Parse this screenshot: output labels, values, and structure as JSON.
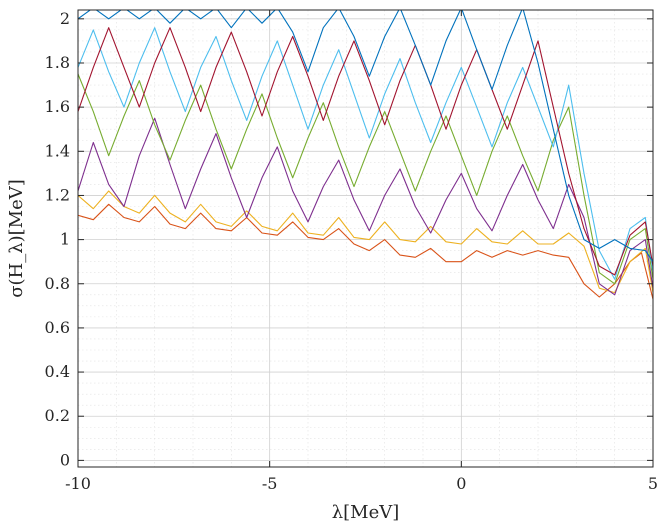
{
  "chart_data": {
    "type": "line",
    "title": "",
    "xlabel": "λ[MeV]",
    "ylabel": "σ(H_λ)[MeV]",
    "xlim": [
      -10,
      5
    ],
    "ylim": [
      -0.03,
      2.04
    ],
    "xticks": [
      -10,
      -5,
      0,
      5
    ],
    "xtick_labels": [
      "-10",
      "-5",
      "0",
      "5"
    ],
    "yticks": [
      0,
      0.2,
      0.4,
      0.6,
      0.8,
      1,
      1.2,
      1.4,
      1.6,
      1.8,
      2
    ],
    "ytick_labels": [
      "0",
      "0.2",
      "0.4",
      "0.6",
      "0.8",
      "1",
      "1.2",
      "1.4",
      "1.6",
      "1.8",
      "2"
    ],
    "grid": "major and minor, dotted",
    "colors": [
      "#0072BD",
      "#D95319",
      "#EDB120",
      "#7E2F8E",
      "#77AC30",
      "#4DBEEE",
      "#A2142F"
    ],
    "series": [
      {
        "color": "#D95319",
        "points": [
          [
            -10,
            1.11
          ],
          [
            -9.6,
            1.09
          ],
          [
            -9.2,
            1.16
          ],
          [
            -8.8,
            1.1
          ],
          [
            -8.4,
            1.08
          ],
          [
            -8.0,
            1.15
          ],
          [
            -7.6,
            1.07
          ],
          [
            -7.2,
            1.05
          ],
          [
            -6.8,
            1.12
          ],
          [
            -6.4,
            1.05
          ],
          [
            -6.0,
            1.04
          ],
          [
            -5.6,
            1.1
          ],
          [
            -5.2,
            1.03
          ],
          [
            -4.8,
            1.02
          ],
          [
            -4.4,
            1.08
          ],
          [
            -4.0,
            1.01
          ],
          [
            -3.6,
            1.0
          ],
          [
            -3.2,
            1.05
          ],
          [
            -2.8,
            0.98
          ],
          [
            -2.4,
            0.95
          ],
          [
            -2.0,
            1.0
          ],
          [
            -1.6,
            0.93
          ],
          [
            -1.2,
            0.92
          ],
          [
            -0.8,
            0.96
          ],
          [
            -0.4,
            0.9
          ],
          [
            0.0,
            0.9
          ],
          [
            0.4,
            0.95
          ],
          [
            0.8,
            0.92
          ],
          [
            1.2,
            0.95
          ],
          [
            1.6,
            0.93
          ],
          [
            2.0,
            0.95
          ],
          [
            2.4,
            0.93
          ],
          [
            2.8,
            0.92
          ],
          [
            3.2,
            0.8
          ],
          [
            3.6,
            0.74
          ],
          [
            4.0,
            0.8
          ],
          [
            4.4,
            0.9
          ],
          [
            4.7,
            0.94
          ],
          [
            5.0,
            0.73
          ]
        ]
      },
      {
        "color": "#EDB120",
        "points": [
          [
            -10,
            1.2
          ],
          [
            -9.6,
            1.14
          ],
          [
            -9.2,
            1.22
          ],
          [
            -8.8,
            1.15
          ],
          [
            -8.4,
            1.12
          ],
          [
            -8.0,
            1.2
          ],
          [
            -7.6,
            1.12
          ],
          [
            -7.2,
            1.08
          ],
          [
            -6.8,
            1.16
          ],
          [
            -6.4,
            1.08
          ],
          [
            -6.0,
            1.06
          ],
          [
            -5.6,
            1.13
          ],
          [
            -5.2,
            1.06
          ],
          [
            -4.8,
            1.04
          ],
          [
            -4.4,
            1.12
          ],
          [
            -4.0,
            1.03
          ],
          [
            -3.6,
            1.02
          ],
          [
            -3.2,
            1.1
          ],
          [
            -2.8,
            1.01
          ],
          [
            -2.4,
            1.0
          ],
          [
            -2.0,
            1.08
          ],
          [
            -1.6,
            1.0
          ],
          [
            -1.2,
            0.99
          ],
          [
            -0.8,
            1.06
          ],
          [
            -0.4,
            0.99
          ],
          [
            0.0,
            0.98
          ],
          [
            0.4,
            1.05
          ],
          [
            0.8,
            0.99
          ],
          [
            1.2,
            0.98
          ],
          [
            1.6,
            1.04
          ],
          [
            2.0,
            0.98
          ],
          [
            2.4,
            0.98
          ],
          [
            2.8,
            1.03
          ],
          [
            3.2,
            0.97
          ],
          [
            3.6,
            0.78
          ],
          [
            4.0,
            0.76
          ],
          [
            4.4,
            0.9
          ],
          [
            4.8,
            0.96
          ],
          [
            5.0,
            0.76
          ]
        ]
      },
      {
        "color": "#7E2F8E",
        "points": [
          [
            -10,
            1.22
          ],
          [
            -9.6,
            1.44
          ],
          [
            -9.2,
            1.25
          ],
          [
            -8.8,
            1.15
          ],
          [
            -8.4,
            1.38
          ],
          [
            -8.0,
            1.55
          ],
          [
            -7.6,
            1.34
          ],
          [
            -7.2,
            1.14
          ],
          [
            -6.8,
            1.32
          ],
          [
            -6.4,
            1.48
          ],
          [
            -6.0,
            1.28
          ],
          [
            -5.6,
            1.1
          ],
          [
            -5.2,
            1.28
          ],
          [
            -4.8,
            1.42
          ],
          [
            -4.4,
            1.22
          ],
          [
            -4.0,
            1.08
          ],
          [
            -3.6,
            1.24
          ],
          [
            -3.2,
            1.36
          ],
          [
            -2.8,
            1.18
          ],
          [
            -2.4,
            1.04
          ],
          [
            -2.0,
            1.2
          ],
          [
            -1.6,
            1.32
          ],
          [
            -1.2,
            1.15
          ],
          [
            -0.8,
            1.03
          ],
          [
            -0.4,
            1.18
          ],
          [
            0.0,
            1.3
          ],
          [
            0.4,
            1.14
          ],
          [
            0.8,
            1.04
          ],
          [
            1.2,
            1.2
          ],
          [
            1.6,
            1.34
          ],
          [
            2.0,
            1.18
          ],
          [
            2.4,
            1.05
          ],
          [
            2.8,
            1.25
          ],
          [
            3.2,
            1.1
          ],
          [
            3.6,
            0.8
          ],
          [
            4.0,
            0.75
          ],
          [
            4.4,
            0.95
          ],
          [
            4.8,
            1.0
          ],
          [
            5.0,
            0.78
          ]
        ]
      },
      {
        "color": "#77AC30",
        "points": [
          [
            -10,
            1.75
          ],
          [
            -9.6,
            1.58
          ],
          [
            -9.2,
            1.38
          ],
          [
            -8.8,
            1.56
          ],
          [
            -8.4,
            1.72
          ],
          [
            -8.0,
            1.52
          ],
          [
            -7.6,
            1.36
          ],
          [
            -7.2,
            1.54
          ],
          [
            -6.8,
            1.7
          ],
          [
            -6.4,
            1.5
          ],
          [
            -6.0,
            1.32
          ],
          [
            -5.6,
            1.5
          ],
          [
            -5.2,
            1.66
          ],
          [
            -4.8,
            1.46
          ],
          [
            -4.4,
            1.28
          ],
          [
            -4.0,
            1.46
          ],
          [
            -3.6,
            1.62
          ],
          [
            -3.2,
            1.42
          ],
          [
            -2.8,
            1.24
          ],
          [
            -2.4,
            1.42
          ],
          [
            -2.0,
            1.58
          ],
          [
            -1.6,
            1.4
          ],
          [
            -1.2,
            1.22
          ],
          [
            -0.8,
            1.4
          ],
          [
            -0.4,
            1.56
          ],
          [
            0.0,
            1.38
          ],
          [
            0.4,
            1.2
          ],
          [
            0.8,
            1.4
          ],
          [
            1.2,
            1.56
          ],
          [
            1.6,
            1.38
          ],
          [
            2.0,
            1.22
          ],
          [
            2.4,
            1.45
          ],
          [
            2.8,
            1.6
          ],
          [
            3.2,
            1.2
          ],
          [
            3.6,
            0.85
          ],
          [
            4.0,
            0.8
          ],
          [
            4.4,
            1.0
          ],
          [
            4.8,
            1.05
          ],
          [
            5.0,
            0.82
          ]
        ]
      },
      {
        "color": "#4DBEEE",
        "points": [
          [
            -10,
            1.78
          ],
          [
            -9.6,
            1.95
          ],
          [
            -9.2,
            1.76
          ],
          [
            -8.8,
            1.6
          ],
          [
            -8.4,
            1.8
          ],
          [
            -8.0,
            1.96
          ],
          [
            -7.6,
            1.76
          ],
          [
            -7.2,
            1.58
          ],
          [
            -6.8,
            1.78
          ],
          [
            -6.4,
            1.92
          ],
          [
            -6.0,
            1.72
          ],
          [
            -5.6,
            1.54
          ],
          [
            -5.2,
            1.74
          ],
          [
            -4.8,
            1.9
          ],
          [
            -4.4,
            1.7
          ],
          [
            -4.0,
            1.5
          ],
          [
            -3.6,
            1.7
          ],
          [
            -3.2,
            1.86
          ],
          [
            -2.8,
            1.66
          ],
          [
            -2.4,
            1.46
          ],
          [
            -2.0,
            1.66
          ],
          [
            -1.6,
            1.82
          ],
          [
            -1.2,
            1.62
          ],
          [
            -0.8,
            1.44
          ],
          [
            -0.4,
            1.62
          ],
          [
            0.0,
            1.78
          ],
          [
            0.4,
            1.6
          ],
          [
            0.8,
            1.42
          ],
          [
            1.2,
            1.62
          ],
          [
            1.6,
            1.78
          ],
          [
            2.0,
            1.6
          ],
          [
            2.4,
            1.42
          ],
          [
            2.8,
            1.7
          ],
          [
            3.2,
            1.3
          ],
          [
            3.6,
            0.95
          ],
          [
            4.0,
            0.82
          ],
          [
            4.4,
            1.05
          ],
          [
            4.8,
            1.1
          ],
          [
            5.0,
            0.85
          ]
        ]
      },
      {
        "color": "#A2142F",
        "points": [
          [
            -10,
            1.58
          ],
          [
            -9.6,
            1.78
          ],
          [
            -9.2,
            1.96
          ],
          [
            -8.8,
            1.78
          ],
          [
            -8.4,
            1.6
          ],
          [
            -8.0,
            1.8
          ],
          [
            -7.6,
            1.96
          ],
          [
            -7.2,
            1.78
          ],
          [
            -6.8,
            1.58
          ],
          [
            -6.4,
            1.78
          ],
          [
            -6.0,
            1.94
          ],
          [
            -5.6,
            1.76
          ],
          [
            -5.2,
            1.56
          ],
          [
            -4.8,
            1.76
          ],
          [
            -4.4,
            1.92
          ],
          [
            -4.0,
            1.74
          ],
          [
            -3.6,
            1.54
          ],
          [
            -3.2,
            1.74
          ],
          [
            -2.8,
            1.9
          ],
          [
            -2.4,
            1.72
          ],
          [
            -2.0,
            1.52
          ],
          [
            -1.6,
            1.72
          ],
          [
            -1.2,
            1.88
          ],
          [
            -0.8,
            1.7
          ],
          [
            -0.4,
            1.5
          ],
          [
            0.0,
            1.7
          ],
          [
            0.4,
            1.86
          ],
          [
            0.8,
            1.68
          ],
          [
            1.2,
            1.5
          ],
          [
            1.6,
            1.7
          ],
          [
            2.0,
            1.9
          ],
          [
            2.4,
            1.6
          ],
          [
            2.8,
            1.3
          ],
          [
            3.2,
            1.05
          ],
          [
            3.6,
            0.88
          ],
          [
            4.0,
            0.84
          ],
          [
            4.4,
            1.02
          ],
          [
            4.8,
            1.08
          ],
          [
            5.0,
            0.88
          ]
        ]
      },
      {
        "color": "#0072BD",
        "points": [
          [
            -10,
            2.0
          ],
          [
            -9.6,
            2.05
          ],
          [
            -9.2,
            2.0
          ],
          [
            -8.8,
            2.05
          ],
          [
            -8.4,
            2.0
          ],
          [
            -8.0,
            2.05
          ],
          [
            -7.6,
            1.98
          ],
          [
            -7.2,
            2.05
          ],
          [
            -6.8,
            2.0
          ],
          [
            -6.4,
            2.05
          ],
          [
            -6.0,
            1.96
          ],
          [
            -5.6,
            2.05
          ],
          [
            -5.2,
            1.98
          ],
          [
            -4.8,
            2.05
          ],
          [
            -4.4,
            1.94
          ],
          [
            -4.0,
            1.76
          ],
          [
            -3.6,
            1.96
          ],
          [
            -3.2,
            2.05
          ],
          [
            -2.8,
            1.92
          ],
          [
            -2.4,
            1.74
          ],
          [
            -2.0,
            1.92
          ],
          [
            -1.6,
            2.05
          ],
          [
            -1.2,
            1.88
          ],
          [
            -0.8,
            1.7
          ],
          [
            -0.4,
            1.9
          ],
          [
            0.0,
            2.05
          ],
          [
            0.4,
            1.86
          ],
          [
            0.8,
            1.68
          ],
          [
            1.2,
            1.88
          ],
          [
            1.6,
            2.05
          ],
          [
            2.0,
            1.8
          ],
          [
            2.4,
            1.5
          ],
          [
            2.8,
            1.2
          ],
          [
            3.2,
            1.0
          ],
          [
            3.6,
            0.96
          ],
          [
            4.0,
            1.0
          ],
          [
            4.4,
            0.96
          ],
          [
            4.8,
            0.95
          ],
          [
            5.0,
            0.9
          ]
        ]
      }
    ]
  }
}
